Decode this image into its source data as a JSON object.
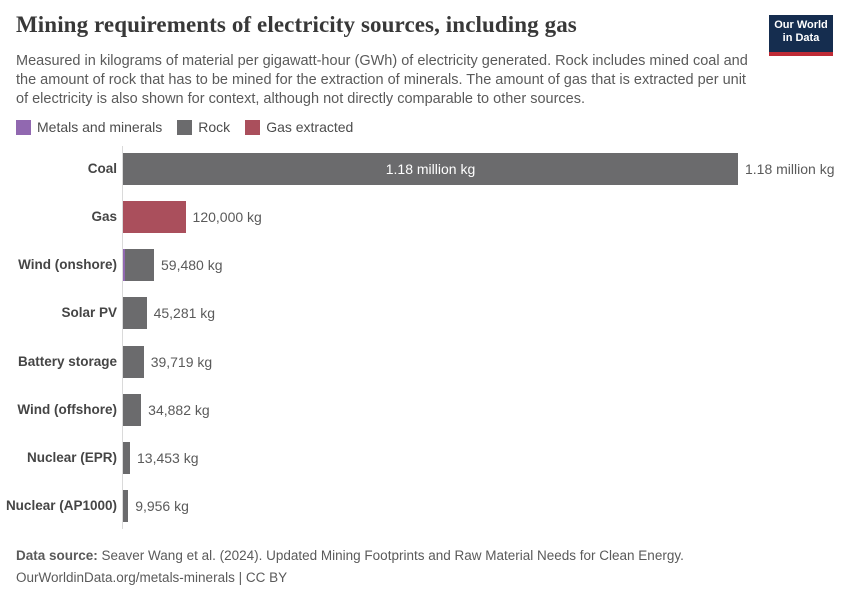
{
  "logo": {
    "line1": "Our World",
    "line2": "in Data"
  },
  "header": {
    "title": "Mining requirements of electricity sources, including gas",
    "subtitle": "Measured in kilograms of material per gigawatt-hour (GWh) of electricity generated. Rock includes mined coal and the amount of rock that has to be mined for the extraction of minerals. The amount of gas that is extracted per unit of electricity is also shown for context, although not directly comparable to other sources."
  },
  "palette": {
    "metals": "#9168b0",
    "rock": "#6b6b6d",
    "gas": "#aa4f5c",
    "axis": "#dadada",
    "logo_navy": "#152d4f",
    "logo_red": "#bf2b36"
  },
  "legend": {
    "items": [
      {
        "label": "Metals and minerals",
        "key": "metals"
      },
      {
        "label": "Rock",
        "key": "rock"
      },
      {
        "label": "Gas extracted",
        "key": "gas"
      }
    ]
  },
  "chart_data": {
    "type": "bar",
    "orientation": "horizontal",
    "title": "Mining requirements of electricity sources, including gas",
    "unit": "kg per GWh",
    "xmax": 1180000,
    "grid": false,
    "legend_position": "top",
    "categories": [
      "Coal",
      "Gas",
      "Wind (onshore)",
      "Solar PV",
      "Battery storage",
      "Wind (offshore)",
      "Nuclear (EPR)",
      "Nuclear (AP1000)"
    ],
    "rows": [
      {
        "category": "Coal",
        "total": 1180000,
        "value_label": "1.18 million kg",
        "inside_label": "1.18 million kg",
        "segments": [
          {
            "key": "rock",
            "value": 1180000
          }
        ]
      },
      {
        "category": "Gas",
        "total": 120000,
        "value_label": "120,000 kg",
        "segments": [
          {
            "key": "gas",
            "value": 120000
          }
        ]
      },
      {
        "category": "Wind (onshore)",
        "total": 59480,
        "value_label": "59,480 kg",
        "segments": [
          {
            "key": "metals",
            "value": 3500
          },
          {
            "key": "rock",
            "value": 55980
          }
        ]
      },
      {
        "category": "Solar PV",
        "total": 45281,
        "value_label": "45,281 kg",
        "segments": [
          {
            "key": "rock",
            "value": 45281
          }
        ]
      },
      {
        "category": "Battery storage",
        "total": 39719,
        "value_label": "39,719 kg",
        "segments": [
          {
            "key": "rock",
            "value": 39719
          }
        ]
      },
      {
        "category": "Wind (offshore)",
        "total": 34882,
        "value_label": "34,882 kg",
        "segments": [
          {
            "key": "rock",
            "value": 34882
          }
        ]
      },
      {
        "category": "Nuclear (EPR)",
        "total": 13453,
        "value_label": "13,453 kg",
        "segments": [
          {
            "key": "rock",
            "value": 13453
          }
        ]
      },
      {
        "category": "Nuclear (AP1000)",
        "total": 9956,
        "value_label": "9,956 kg",
        "segments": [
          {
            "key": "rock",
            "value": 9956
          }
        ]
      }
    ]
  },
  "footer": {
    "datasource_label": "Data source:",
    "datasource_text": " Seaver Wang et al. (2024). Updated Mining Footprints and Raw Material Needs for Clean Energy.",
    "link_text": "OurWorldinData.org/metals-minerals",
    "license_text": " | CC BY"
  }
}
